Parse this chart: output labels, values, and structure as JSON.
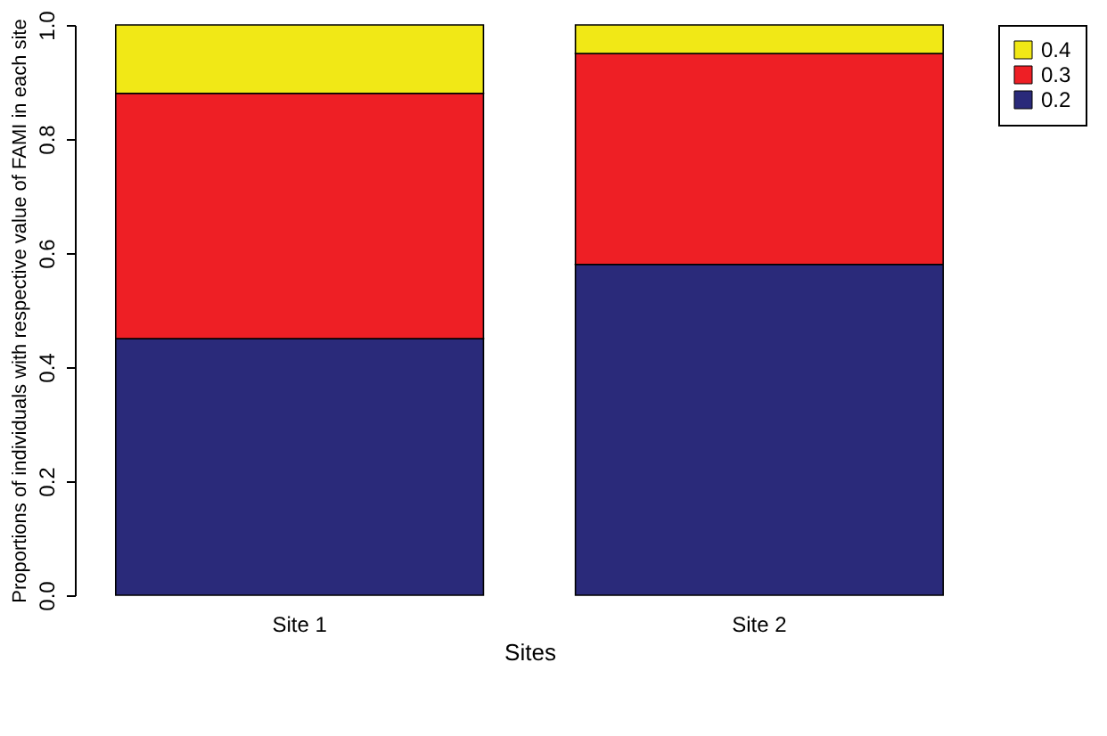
{
  "chart_data": {
    "type": "bar",
    "stacked": true,
    "xlabel": "Sites",
    "ylabel": "Proportions of individuals with respective value of FAMI in each site",
    "categories": [
      "Site 1",
      "Site 2"
    ],
    "series": [
      {
        "name": "0.2",
        "color": "#2a2a7a",
        "values": [
          0.45,
          0.58
        ]
      },
      {
        "name": "0.3",
        "color": "#ee1f25",
        "values": [
          0.43,
          0.37
        ]
      },
      {
        "name": "0.4",
        "color": "#f1e816",
        "values": [
          0.12,
          0.05
        ]
      }
    ],
    "ylim": [
      0,
      1.0
    ],
    "yticks": [
      {
        "value": 0,
        "label": "0.0"
      },
      0.2,
      0.4,
      0.6,
      0.8,
      {
        "value": 1,
        "label": "1.0"
      }
    ],
    "grid": false,
    "legend": "right"
  }
}
